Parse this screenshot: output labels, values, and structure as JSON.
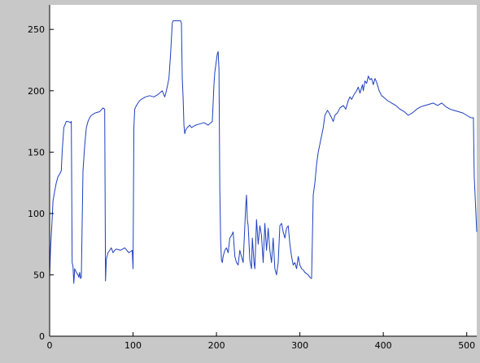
{
  "chart_data": {
    "type": "line",
    "title": "",
    "xlabel": "",
    "ylabel": "",
    "xlim": [
      0,
      512
    ],
    "ylim": [
      0,
      270
    ],
    "grid": false,
    "x_ticks": [
      "0",
      "100",
      "200",
      "300",
      "400",
      "500"
    ],
    "y_ticks": [
      "0",
      "50",
      "100",
      "150",
      "200",
      "250"
    ],
    "line_color": "#1f3fbf",
    "axes_background": "#ffffff",
    "figure_background": "#c8c8c8",
    "series": [
      {
        "x": [
          0,
          1,
          3,
          4,
          6,
          8,
          10,
          12,
          14,
          15,
          17,
          20,
          22,
          25,
          26,
          27,
          28,
          29,
          30,
          32,
          34,
          35,
          36,
          37,
          38,
          40,
          42,
          44,
          46,
          48,
          50,
          55,
          60,
          64,
          66,
          67,
          68,
          70,
          72,
          74,
          76,
          78,
          80,
          85,
          90,
          95,
          99,
          100,
          101,
          102,
          104,
          106,
          108,
          110,
          115,
          120,
          125,
          130,
          135,
          138,
          140,
          143,
          145,
          147,
          148,
          150,
          152,
          155,
          157,
          158,
          159,
          160,
          161,
          162,
          163,
          165,
          168,
          170,
          175,
          180,
          185,
          190,
          195,
          197,
          198,
          200,
          201,
          202,
          203,
          204,
          205,
          206,
          207,
          208,
          210,
          212,
          214,
          216,
          218,
          220,
          222,
          224,
          226,
          228,
          230,
          232,
          234,
          235,
          236,
          237,
          238,
          240,
          242,
          243,
          244,
          245,
          246,
          248,
          250,
          252,
          254,
          256,
          258,
          260,
          262,
          264,
          266,
          268,
          270,
          272,
          274,
          276,
          278,
          280,
          282,
          284,
          286,
          288,
          290,
          292,
          294,
          296,
          298,
          300,
          302,
          304,
          306,
          308,
          310,
          312,
          314,
          315,
          316,
          318,
          320,
          322,
          325,
          328,
          330,
          333,
          335,
          338,
          340,
          342,
          345,
          348,
          350,
          352,
          355,
          358,
          360,
          362,
          365,
          368,
          370,
          372,
          375,
          376,
          378,
          380,
          382,
          384,
          386,
          388,
          390,
          392,
          395,
          398,
          400,
          405,
          410,
          415,
          420,
          425,
          430,
          435,
          440,
          445,
          450,
          455,
          460,
          465,
          470,
          475,
          480,
          485,
          490,
          495,
          500,
          505,
          508,
          509,
          510,
          511,
          512
        ],
        "y": [
          48,
          70,
          95,
          110,
          118,
          125,
          130,
          132,
          135,
          150,
          170,
          175,
          175,
          174,
          175,
          60,
          57,
          43,
          55,
          52,
          50,
          48,
          52,
          47,
          48,
          135,
          155,
          170,
          175,
          178,
          180,
          182,
          183,
          186,
          185,
          45,
          63,
          68,
          70,
          72,
          68,
          70,
          71,
          70,
          72,
          68,
          70,
          55,
          170,
          185,
          188,
          190,
          192,
          193,
          195,
          196,
          195,
          197,
          200,
          195,
          200,
          210,
          230,
          255,
          257,
          257,
          257,
          257,
          257,
          255,
          210,
          195,
          172,
          165,
          168,
          170,
          172,
          170,
          172,
          173,
          174,
          172,
          175,
          205,
          215,
          225,
          230,
          232,
          218,
          120,
          78,
          62,
          60,
          65,
          70,
          72,
          68,
          80,
          82,
          85,
          65,
          60,
          58,
          70,
          65,
          60,
          90,
          105,
          115,
          95,
          90,
          62,
          55,
          80,
          70,
          60,
          55,
          95,
          75,
          90,
          82,
          60,
          92,
          70,
          88,
          70,
          60,
          80,
          55,
          50,
          60,
          90,
          92,
          85,
          80,
          88,
          90,
          75,
          65,
          58,
          60,
          55,
          65,
          58,
          55,
          54,
          52,
          51,
          50,
          48,
          47,
          80,
          115,
          125,
          140,
          150,
          160,
          170,
          180,
          184,
          182,
          178,
          175,
          180,
          182,
          186,
          187,
          188,
          185,
          192,
          195,
          193,
          197,
          200,
          203,
          198,
          205,
          200,
          208,
          206,
          212,
          209,
          210,
          205,
          210,
          207,
          200,
          196,
          195,
          192,
          190,
          188,
          185,
          183,
          180,
          182,
          185,
          187,
          188,
          189,
          190,
          188,
          190,
          187,
          185,
          184,
          183,
          182,
          180,
          178,
          178,
          130,
          115,
          100,
          85
        ]
      }
    ]
  }
}
